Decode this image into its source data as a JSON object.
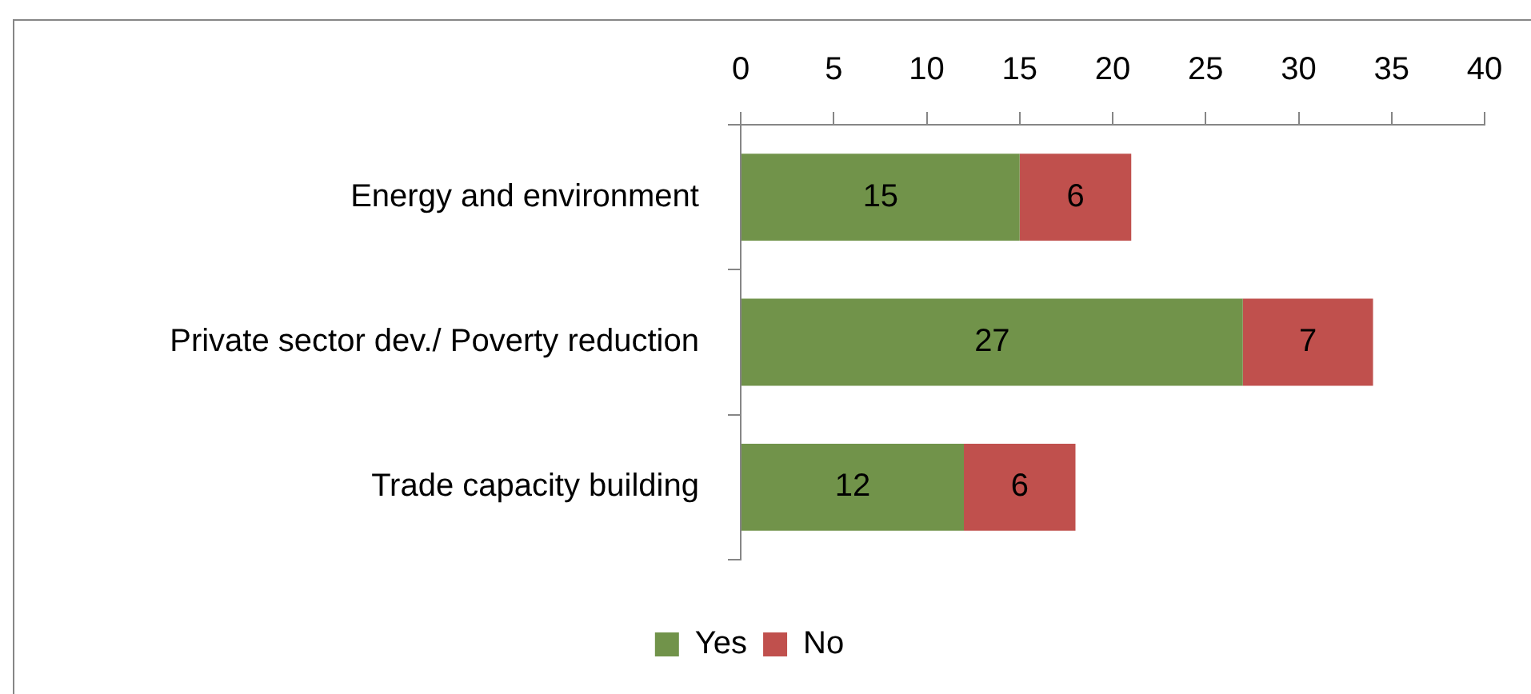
{
  "chart_data": {
    "type": "bar",
    "orientation": "horizontal",
    "stacked": true,
    "categories": [
      "Energy and environment",
      "Private sector dev./ Poverty reduction",
      "Trade capacity building"
    ],
    "series": [
      {
        "name": "Yes",
        "color": "#71934a",
        "values": [
          15,
          27,
          12
        ]
      },
      {
        "name": "No",
        "color": "#c0504d",
        "values": [
          6,
          7,
          6
        ]
      }
    ],
    "xlim": [
      0,
      40
    ],
    "xticks": [
      0,
      5,
      10,
      15,
      20,
      25,
      30,
      35,
      40
    ],
    "grid": false,
    "legend": "bottom",
    "data_labels": true
  }
}
